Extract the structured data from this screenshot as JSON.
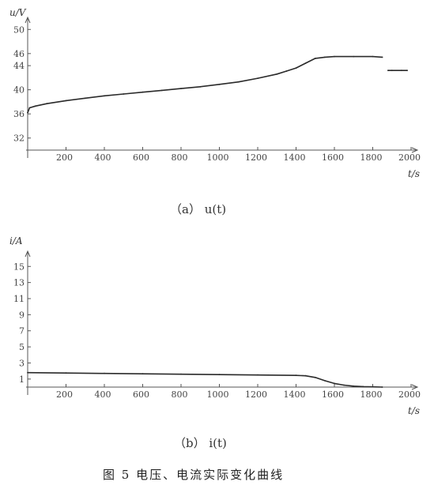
{
  "chart_data": [
    {
      "type": "line",
      "ylabel": "u/V",
      "xlabel": "t/s",
      "caption": "（a）    u(t)",
      "xlim": [
        0,
        2000
      ],
      "ylim": [
        30,
        52
      ],
      "xticks": [
        200,
        400,
        600,
        800,
        1000,
        1200,
        1400,
        1600,
        1800,
        2000
      ],
      "yticks": [
        32,
        36,
        40,
        44,
        46,
        50
      ],
      "series": [
        {
          "x": [
            0,
            10,
            40,
            100,
            200,
            300,
            400,
            500,
            600,
            700,
            800,
            900,
            1000,
            1100,
            1200,
            1300,
            1350,
            1400,
            1450,
            1500,
            1550,
            1600,
            1700,
            1800,
            1850
          ],
          "y": [
            36.2,
            37.0,
            37.3,
            37.7,
            38.2,
            38.6,
            39.0,
            39.3,
            39.6,
            39.9,
            40.2,
            40.5,
            40.9,
            41.3,
            41.9,
            42.6,
            43.1,
            43.6,
            44.4,
            45.2,
            45.4,
            45.5,
            45.5,
            45.5,
            45.4
          ]
        },
        {
          "x": [
            1880,
            1900,
            1950,
            1980
          ],
          "y": [
            43.2,
            43.2,
            43.2,
            43.2
          ]
        }
      ]
    },
    {
      "type": "line",
      "ylabel": "i/A",
      "xlabel": "t/s",
      "caption": "（b）    i(t)",
      "xlim": [
        0,
        2000
      ],
      "ylim": [
        0,
        16.5
      ],
      "xticks": [
        200,
        400,
        600,
        800,
        1000,
        1200,
        1400,
        1600,
        1800,
        2000
      ],
      "yticks": [
        1,
        3,
        5,
        7,
        9,
        11,
        13,
        15
      ],
      "series": [
        {
          "x": [
            0,
            200,
            400,
            600,
            800,
            1000,
            1200,
            1400,
            1450,
            1500,
            1550,
            1600,
            1650,
            1700,
            1750,
            1800,
            1850
          ],
          "y": [
            1.8,
            1.75,
            1.7,
            1.65,
            1.6,
            1.55,
            1.5,
            1.45,
            1.4,
            1.2,
            0.8,
            0.45,
            0.25,
            0.12,
            0.06,
            0.03,
            0.0
          ]
        }
      ]
    }
  ],
  "figure_caption": "图 5    电压、电流实际变化曲线"
}
